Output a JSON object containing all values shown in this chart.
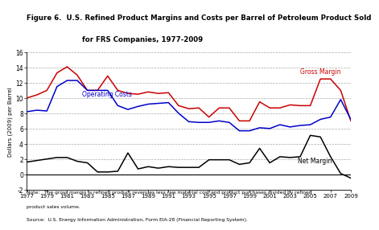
{
  "title_line1": "Figure 6.  U.S. Refined Product Margins and Costs per Barrel of Petroleum Product Sold",
  "title_line2": "for FRS Companies, 1977-2009",
  "ylabel": "Dollars (2009) per Barrel",
  "note_line1": "Note:   The gross margin is refined product revenues less raw material cost and product purchases divided by refined",
  "note_line2": "product sales volume.",
  "source": "Source:  U.S. Energy Information Administration, Form EIA-28 (Financial Reporting System).",
  "years": [
    1977,
    1978,
    1979,
    1980,
    1981,
    1982,
    1983,
    1984,
    1985,
    1986,
    1987,
    1988,
    1989,
    1990,
    1991,
    1992,
    1993,
    1994,
    1995,
    1996,
    1997,
    1998,
    1999,
    2000,
    2001,
    2002,
    2003,
    2004,
    2005,
    2006,
    2007,
    2008,
    2009
  ],
  "gross_margin": [
    10.0,
    10.4,
    11.0,
    13.3,
    14.1,
    13.0,
    11.0,
    11.0,
    12.9,
    11.0,
    10.6,
    10.5,
    10.8,
    10.6,
    10.7,
    9.0,
    8.6,
    8.7,
    7.5,
    8.7,
    8.7,
    7.0,
    7.0,
    9.5,
    8.7,
    8.7,
    9.1,
    9.0,
    9.0,
    12.5,
    12.5,
    11.0,
    7.0
  ],
  "operating_costs": [
    8.2,
    8.4,
    8.3,
    11.5,
    12.3,
    12.3,
    11.0,
    11.0,
    11.0,
    9.0,
    8.5,
    8.9,
    9.2,
    9.3,
    9.4,
    8.0,
    6.9,
    6.8,
    6.8,
    7.0,
    6.8,
    5.7,
    5.7,
    6.1,
    6.0,
    6.5,
    6.2,
    6.4,
    6.5,
    7.2,
    7.5,
    9.8,
    7.2
  ],
  "net_margin": [
    1.6,
    1.8,
    2.0,
    2.2,
    2.2,
    1.7,
    1.5,
    0.3,
    0.3,
    0.4,
    2.8,
    0.7,
    1.0,
    0.8,
    1.0,
    0.9,
    0.9,
    0.9,
    1.9,
    1.9,
    1.9,
    1.3,
    1.5,
    3.4,
    1.5,
    2.3,
    2.2,
    2.3,
    5.1,
    4.9,
    2.3,
    0.1,
    -0.5
  ],
  "gross_margin_color": "#cc0000",
  "operating_costs_color": "#0000cc",
  "net_margin_color": "#000000",
  "ylim": [
    -2,
    16
  ],
  "yticks": [
    -2,
    0,
    2,
    4,
    6,
    8,
    10,
    12,
    14,
    16
  ],
  "xtick_years": [
    1977,
    1979,
    1981,
    1983,
    1985,
    1987,
    1989,
    1991,
    1993,
    1995,
    1997,
    1999,
    2001,
    2003,
    2005,
    2007,
    2009
  ],
  "background_color": "#ffffff",
  "grid_color": "#aaaaaa",
  "fig_width": 4.74,
  "fig_height": 2.78,
  "dpi": 100
}
